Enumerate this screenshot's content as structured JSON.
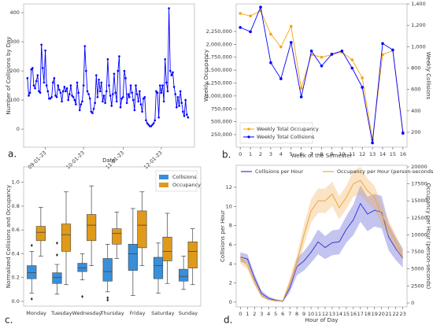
{
  "chart_data": [
    {
      "type": "line",
      "panel_label": "a.",
      "xlabel": "Date",
      "ylabel": "Number of Collisions by Day",
      "x": [
        "08-18-23",
        "08-19-23",
        "08-20-23",
        "08-21-23",
        "08-22-23",
        "08-23-23",
        "08-24-23",
        "08-25-23",
        "08-26-23",
        "08-27-23",
        "08-28-23",
        "08-29-23",
        "08-30-23",
        "08-31-23",
        "09-01-23",
        "09-02-23",
        "09-03-23",
        "09-04-23",
        "09-05-23",
        "09-06-23",
        "09-07-23",
        "09-08-23",
        "09-09-23",
        "09-10-23",
        "09-11-23",
        "09-12-23",
        "09-13-23",
        "09-14-23",
        "09-15-23",
        "09-16-23",
        "09-17-23",
        "09-18-23",
        "09-19-23",
        "09-20-23",
        "09-21-23",
        "09-22-23",
        "09-23-23",
        "09-24-23",
        "09-25-23",
        "09-26-23",
        "09-27-23",
        "09-28-23",
        "09-29-23",
        "09-30-23",
        "10-01-23",
        "10-02-23",
        "10-03-23",
        "10-04-23",
        "10-05-23",
        "10-06-23",
        "10-07-23",
        "10-08-23",
        "10-09-23",
        "10-10-23",
        "10-11-23",
        "10-12-23",
        "10-13-23",
        "10-14-23",
        "10-15-23",
        "10-16-23",
        "10-17-23",
        "10-18-23",
        "10-19-23",
        "10-20-23",
        "10-21-23",
        "10-22-23",
        "10-23-23",
        "10-24-23",
        "10-25-23",
        "10-26-23",
        "10-27-23",
        "10-28-23",
        "10-29-23",
        "10-30-23",
        "10-31-23",
        "11-01-23",
        "11-02-23",
        "11-03-23",
        "11-04-23",
        "11-05-23",
        "11-06-23",
        "11-07-23",
        "11-08-23",
        "11-09-23",
        "11-10-23",
        "11-11-23",
        "11-12-23",
        "11-13-23",
        "11-14-23",
        "11-15-23",
        "11-16-23",
        "11-17-23",
        "11-18-23",
        "11-19-23",
        "11-20-23",
        "11-21-23",
        "11-22-23",
        "11-23-23",
        "11-24-23",
        "11-25-23",
        "11-26-23",
        "11-27-23",
        "11-28-23",
        "11-29-23",
        "11-30-23",
        "12-01-23",
        "12-02-23",
        "12-03-23",
        "12-04-23",
        "12-05-23",
        "12-06-23",
        "12-07-23",
        "12-08-23",
        "12-09-23",
        "12-10-23",
        "12-11-23",
        "12-12-23",
        "12-13-23",
        "12-14-23",
        "12-15-23",
        "12-16-23",
        "12-17-23",
        "12-18-23",
        "12-19-23",
        "12-20-23",
        "12-21-23",
        "12-22-23"
      ],
      "series": [
        {
          "color": "#0000ff",
          "values": [
            175,
            115,
            125,
            205,
            210,
            150,
            140,
            165,
            185,
            130,
            125,
            290,
            210,
            160,
            270,
            150,
            130,
            105,
            105,
            110,
            160,
            175,
            115,
            110,
            150,
            135,
            125,
            95,
            130,
            145,
            130,
            140,
            100,
            120,
            150,
            115,
            110,
            100,
            85,
            160,
            125,
            65,
            85,
            95,
            150,
            285,
            200,
            130,
            120,
            105,
            60,
            55,
            70,
            90,
            185,
            110,
            170,
            130,
            160,
            95,
            115,
            90,
            130,
            240,
            150,
            115,
            80,
            120,
            190,
            125,
            95,
            200,
            250,
            75,
            105,
            110,
            200,
            175,
            90,
            120,
            110,
            150,
            125,
            100,
            65,
            150,
            120,
            95,
            130,
            85,
            60,
            105,
            110,
            30,
            20,
            15,
            10,
            10,
            15,
            20,
            30,
            130,
            125,
            40,
            150,
            125,
            150,
            95,
            240,
            160,
            130,
            415,
            200,
            185,
            195,
            145,
            120,
            75,
            110,
            80,
            130,
            90,
            60,
            45,
            100,
            50,
            40
          ]
        }
      ],
      "xlim": [
        "08-15-23",
        "12-27-23"
      ],
      "xticks": [
        "09-01-23",
        "10-01-23",
        "11-01-23",
        "12-01-23"
      ],
      "ylim": [
        -62,
        430
      ],
      "yticks": [
        0,
        100,
        200,
        300,
        400
      ]
    },
    {
      "type": "line",
      "panel_label": "b.",
      "xlabel": "Week of the Semester",
      "ylabel": "Weekly Occupancy",
      "y2label": "Weekly Collisions",
      "x": [
        0,
        1,
        2,
        3,
        4,
        5,
        6,
        7,
        8,
        9,
        10,
        11,
        12,
        13,
        14,
        15,
        16
      ],
      "series": [
        {
          "name": "Weekly Total Occupancy",
          "color": "#f5a30f",
          "values": [
            2600000,
            2550000,
            2650000,
            2200000,
            1950000,
            2350000,
            1150000,
            1800000,
            1750000,
            1800000,
            1850000,
            1700000,
            1350000,
            150000,
            1800000,
            1880000,
            300000
          ]
        },
        {
          "name": "Weekly Total Collisions",
          "color": "#0000ff",
          "axis": "y2",
          "values": [
            1180,
            1140,
            1370,
            850,
            700,
            1040,
            530,
            960,
            820,
            930,
            960,
            800,
            620,
            100,
            1030,
            970,
            190
          ]
        }
      ],
      "legend": "lower left",
      "xlim": [
        -0.4,
        16.4
      ],
      "xticks": [
        0,
        1,
        2,
        3,
        4,
        5,
        6,
        7,
        8,
        9,
        10,
        11,
        12,
        13,
        14,
        15,
        16
      ],
      "ylim": [
        6000,
        2784000
      ],
      "yticks": [
        {
          "value": 250000,
          "label": "250,000"
        },
        {
          "value": 500000,
          "label": "500,000"
        },
        {
          "value": 750000,
          "label": "750,000"
        },
        {
          "value": 1000000,
          "label": "1,000,000"
        },
        {
          "value": 1250000,
          "label": "1,250,000"
        },
        {
          "value": 1500000,
          "label": "1,500,000"
        },
        {
          "value": 1750000,
          "label": "1,750,000"
        },
        {
          "value": 2000000,
          "label": "2,000,000"
        },
        {
          "value": 2250000,
          "label": "2,250,000"
        }
      ],
      "y2lim": [
        60,
        1400
      ],
      "y2ticks": [
        200,
        400,
        600,
        800,
        {
          "value": 1000,
          "label": "1,000"
        },
        {
          "value": 1200,
          "label": "1,200"
        },
        {
          "value": 1400,
          "label": "1,400"
        }
      ]
    },
    {
      "type": "box",
      "panel_label": "c.",
      "ylabel": "Normalized Collisions and Occupancy",
      "categories": [
        "Monday",
        "Tuesday",
        "Wednesday",
        "Thursday",
        "Friday",
        "Saturday",
        "Sunday"
      ],
      "series": [
        {
          "name": "Collisions",
          "color": "#3a8fd9",
          "boxes": [
            {
              "low": 0.07,
              "q1": 0.19,
              "median": 0.24,
              "q3": 0.3,
              "high": 0.42,
              "outliers": [
                0.47,
                0.02
              ]
            },
            {
              "low": 0.06,
              "q1": 0.15,
              "median": 0.2,
              "q3": 0.24,
              "high": 0.31,
              "outliers": [
                0.39,
                0.49
              ]
            },
            {
              "low": 0.18,
              "q1": 0.25,
              "median": 0.28,
              "q3": 0.32,
              "high": 0.4,
              "outliers": [
                0.04
              ]
            },
            {
              "low": 0.08,
              "q1": 0.17,
              "median": 0.25,
              "q3": 0.36,
              "high": 0.48,
              "outliers": [
                0.03,
                0.01
              ]
            },
            {
              "low": 0.05,
              "q1": 0.26,
              "median": 0.4,
              "q3": 0.48,
              "high": 0.78,
              "outliers": []
            },
            {
              "low": 0.07,
              "q1": 0.19,
              "median": 0.3,
              "q3": 0.37,
              "high": 0.49,
              "outliers": []
            },
            {
              "low": 0.1,
              "q1": 0.17,
              "median": 0.21,
              "q3": 0.27,
              "high": 0.38,
              "outliers": []
            }
          ]
        },
        {
          "name": "Occupancy",
          "color": "#e09a1a",
          "boxes": [
            {
              "low": 0.38,
              "q1": 0.51,
              "median": 0.58,
              "q3": 0.63,
              "high": 0.79,
              "outliers": []
            },
            {
              "low": 0.14,
              "q1": 0.42,
              "median": 0.56,
              "q3": 0.65,
              "high": 0.92,
              "outliers": []
            },
            {
              "low": 0.3,
              "q1": 0.51,
              "median": 0.64,
              "q3": 0.73,
              "high": 0.97,
              "outliers": []
            },
            {
              "low": 0.36,
              "q1": 0.48,
              "median": 0.57,
              "q3": 0.61,
              "high": 0.75,
              "outliers": []
            },
            {
              "low": 0.3,
              "q1": 0.45,
              "median": 0.64,
              "q3": 0.76,
              "high": 0.92,
              "outliers": []
            },
            {
              "low": 0.15,
              "q1": 0.34,
              "median": 0.42,
              "q3": 0.54,
              "high": 0.74,
              "outliers": []
            },
            {
              "low": 0.14,
              "q1": 0.28,
              "median": 0.42,
              "q3": 0.5,
              "high": 0.61,
              "outliers": []
            }
          ]
        }
      ],
      "legend": "upper right",
      "ylim": [
        -0.04,
        1.13
      ],
      "yticks": [
        {
          "value": 0,
          "label": "0.0"
        },
        0.2,
        0.4,
        0.6,
        0.8,
        {
          "value": 1,
          "label": "1.0"
        }
      ]
    },
    {
      "type": "line",
      "panel_label": "d.",
      "xlabel": "Hour of Day",
      "ylabel": "Collisions per Hour",
      "y2label": "Occupancy per Hour (person-seconds)",
      "x": [
        0,
        1,
        2,
        3,
        4,
        5,
        6,
        7,
        8,
        9,
        10,
        11,
        12,
        13,
        14,
        15,
        16,
        17,
        18,
        19,
        20,
        21,
        22,
        23
      ],
      "series": [
        {
          "name": "Collisions per Hour",
          "color": "#3b3bd1",
          "values": [
            4.7,
            4.5,
            2.5,
            0.9,
            0.4,
            0.2,
            0.1,
            1.5,
            3.7,
            4.3,
            5.2,
            6.3,
            5.7,
            6.2,
            6.3,
            7.6,
            8.6,
            10.3,
            9.2,
            9.6,
            9.4,
            6.8,
            5.6,
            4.6
          ],
          "lower": [
            4.2,
            4.0,
            2.1,
            0.6,
            0.2,
            0.1,
            0.0,
            1.0,
            2.8,
            3.3,
            4.1,
            5.0,
            4.5,
            4.9,
            5.0,
            6.2,
            7.0,
            8.4,
            7.4,
            7.9,
            7.7,
            5.4,
            4.4,
            3.6
          ],
          "upper": [
            5.2,
            5.0,
            2.9,
            1.2,
            0.6,
            0.3,
            0.2,
            2.0,
            4.6,
            5.3,
            6.3,
            7.6,
            6.9,
            7.5,
            7.6,
            9.0,
            10.2,
            12.2,
            11.0,
            11.3,
            11.1,
            8.2,
            6.8,
            5.6
          ]
        },
        {
          "name": "Occupancy per Hour (person-seconds)",
          "color": "#f0a640",
          "axis": "y2",
          "values": [
            6500,
            5500,
            3000,
            1000,
            500,
            300,
            300,
            3000,
            6000,
            10000,
            13500,
            15000,
            15000,
            16000,
            14000,
            15500,
            17500,
            18000,
            16500,
            15500,
            13000,
            11000,
            9000,
            7000
          ],
          "lower": [
            5800,
            4900,
            2600,
            800,
            400,
            200,
            200,
            2400,
            5000,
            8500,
            11800,
            13200,
            13200,
            14200,
            12300,
            13800,
            15600,
            16000,
            14700,
            13800,
            11500,
            9800,
            8000,
            6200
          ],
          "upper": [
            7200,
            6100,
            3400,
            1200,
            600,
            400,
            400,
            3600,
            7000,
            11500,
            15200,
            16800,
            16800,
            17800,
            15700,
            17200,
            19400,
            20000,
            18300,
            17200,
            14500,
            12200,
            10000,
            7800
          ]
        }
      ],
      "legend": "upper center",
      "xlim": [
        -0.6,
        23.6
      ],
      "xticks": [
        0,
        1,
        2,
        3,
        4,
        5,
        6,
        7,
        8,
        9,
        10,
        11,
        12,
        13,
        14,
        15,
        16,
        17,
        18,
        19,
        20,
        21,
        22,
        23
      ],
      "ylim": [
        -0.5,
        14.3
      ],
      "yticks": [
        0,
        2,
        4,
        6,
        8,
        10,
        12
      ],
      "y2lim": [
        -580,
        20230
      ],
      "y2ticks": [
        0,
        2500,
        5000,
        7500,
        10000,
        12500,
        15000,
        17500,
        20000
      ]
    }
  ]
}
